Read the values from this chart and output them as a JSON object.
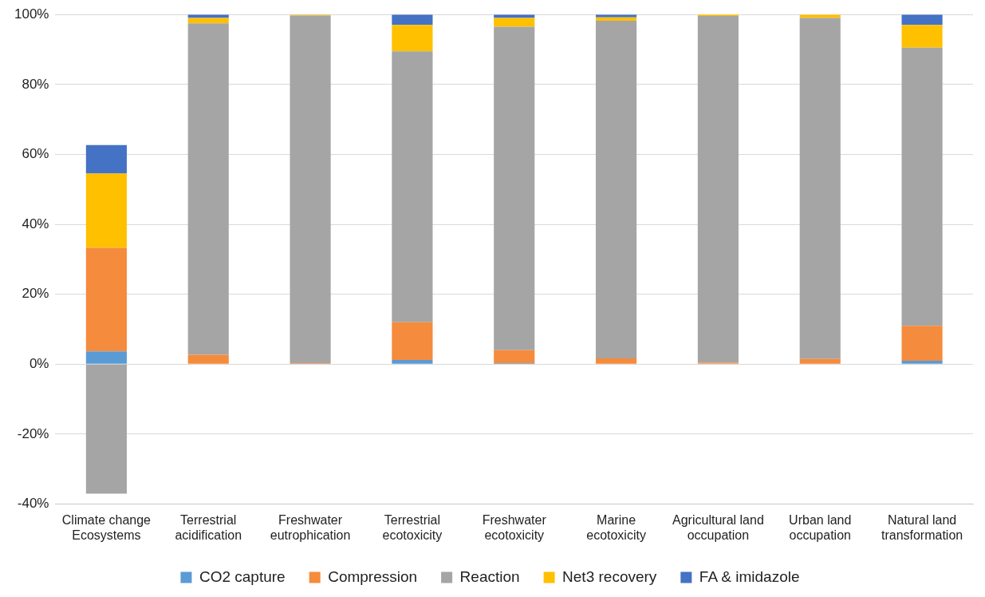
{
  "chart_data": {
    "type": "bar",
    "stacked": true,
    "grid": "y",
    "legend": "bottom",
    "categories": [
      "Climate change Ecosystems",
      "Terrestrial acidification",
      "Freshwater eutrophication",
      "Terrestrial ecotoxicity",
      "Freshwater ecotoxicity",
      "Marine ecotoxicity",
      "Agricultural land occupation",
      "Urban land occupation",
      "Natural land transformation"
    ],
    "series": [
      {
        "name": "CO2 capture",
        "color": "#5b9bd5",
        "values": [
          3.7,
          0,
          0,
          1.2,
          0.3,
          0,
          0,
          0,
          1
        ]
      },
      {
        "name": "Compression",
        "color": "#f58b3c",
        "values": [
          29.6,
          2.7,
          0.3,
          10.8,
          3.7,
          1.7,
          0.4,
          1.5,
          10
        ]
      },
      {
        "name": "Reaction",
        "color": "#a5a5a5",
        "values": [
          -37,
          94.8,
          99.4,
          77.5,
          92.5,
          96.5,
          99.2,
          97.5,
          79.5
        ]
      },
      {
        "name": "Net3 recovery",
        "color": "#ffc000",
        "values": [
          21.2,
          1.5,
          0.3,
          7.5,
          2.5,
          1,
          0.4,
          1,
          6.5
        ]
      },
      {
        "name": "FA & imidazole",
        "color": "#4472c4",
        "values": [
          8.2,
          1,
          0,
          3,
          1,
          0.8,
          0,
          0,
          3
        ]
      }
    ],
    "ylim": [
      -40,
      100
    ],
    "yticks": [
      {
        "value": -40,
        "label": "-40%"
      },
      {
        "value": -20,
        "label": "-20%"
      },
      {
        "value": 0,
        "label": "0%"
      },
      {
        "value": 20,
        "label": "20%"
      },
      {
        "value": 40,
        "label": "40%"
      },
      {
        "value": 60,
        "label": "60%"
      },
      {
        "value": 80,
        "label": "80%"
      },
      {
        "value": 100,
        "label": "100%"
      }
    ]
  }
}
